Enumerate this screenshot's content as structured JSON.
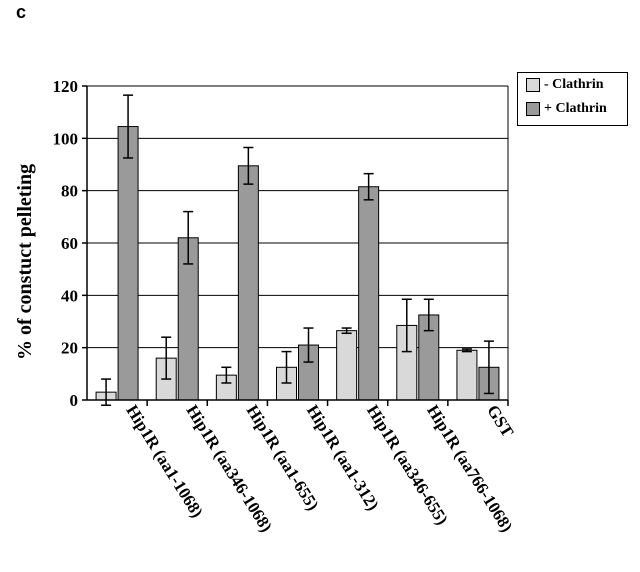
{
  "panel_label": "c",
  "colors": {
    "clathrin_minus": "#d9d9d9",
    "clathrin_plus": "#9a9a9a",
    "axis": "#000000",
    "grid": "#000000"
  },
  "chart_data": {
    "type": "bar",
    "title": "",
    "xlabel": "",
    "ylabel": "% of constuct pelleting",
    "ylim": [
      0,
      120
    ],
    "yticks": [
      0,
      20,
      40,
      60,
      80,
      100,
      120
    ],
    "grid": true,
    "legend_position": "top-right",
    "categories": [
      "Hip1R (aa1-1068)",
      "Hip1R (aa346-1068)",
      "Hip1R (aa1-655)",
      "Hip1R (aa1-312)",
      "Hip1R (aa346-655)",
      "Hip1R (aa766-1068)",
      "GST"
    ],
    "series": [
      {
        "name": "- Clathrin",
        "values": [
          3,
          16,
          9.5,
          12.5,
          26.5,
          28.5,
          19
        ],
        "errors": [
          5,
          8,
          3,
          6,
          1,
          10,
          0.5
        ]
      },
      {
        "name": "+ Clathrin",
        "values": [
          104.5,
          62,
          89.5,
          21,
          81.5,
          32.5,
          12.5
        ],
        "errors": [
          12,
          10,
          7,
          6.5,
          5,
          6,
          10
        ]
      }
    ]
  }
}
